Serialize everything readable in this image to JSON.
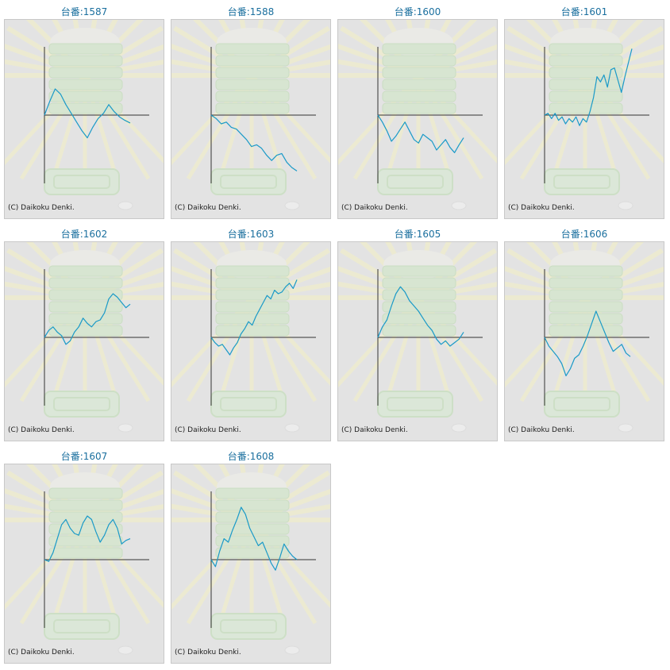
{
  "colors": {
    "line": "#1a9ac8",
    "axis": "#333333",
    "panel": "#e3e3e3",
    "title": "#1a6f9e"
  },
  "chart_data": [
    {
      "type": "line",
      "title": "台番:1587",
      "copyright": "(C) Daikoku Denki.",
      "y": [
        0,
        80,
        150,
        120,
        60,
        10,
        -40,
        -90,
        -130,
        -70,
        -20,
        10,
        60,
        20,
        -10,
        -30,
        -45
      ]
    },
    {
      "type": "line",
      "title": "台番:1588",
      "copyright": "(C) Daikoku Denki.",
      "y": [
        0,
        -20,
        -50,
        -40,
        -70,
        -80,
        -110,
        -140,
        -180,
        -170,
        -190,
        -230,
        -260,
        -230,
        -220,
        -270,
        -300,
        -320
      ]
    },
    {
      "type": "line",
      "title": "台番:1600",
      "copyright": "(C) Daikoku Denki.",
      "y": [
        0,
        -40,
        -90,
        -150,
        -120,
        -80,
        -40,
        -90,
        -140,
        -160,
        -110,
        -130,
        -150,
        -200,
        -170,
        -140,
        -185,
        -215,
        -170,
        -130
      ]
    },
    {
      "type": "line",
      "title": "台番:1601",
      "copyright": "(C) Daikoku Denki.",
      "y": [
        0,
        10,
        -20,
        10,
        -30,
        -10,
        -50,
        -20,
        -40,
        -10,
        -60,
        -20,
        -40,
        20,
        100,
        220,
        190,
        230,
        160,
        260,
        270,
        200,
        130,
        220,
        300,
        380
      ]
    },
    {
      "type": "line",
      "title": "台番:1602",
      "copyright": "(C) Daikoku Denki.",
      "y": [
        0,
        40,
        60,
        30,
        10,
        -40,
        -20,
        30,
        60,
        110,
        80,
        60,
        90,
        100,
        140,
        220,
        250,
        230,
        200,
        170,
        190
      ]
    },
    {
      "type": "line",
      "title": "台番:1603",
      "copyright": "(C) Daikoku Denki.",
      "y": [
        0,
        -30,
        -50,
        -40,
        -70,
        -100,
        -60,
        -30,
        20,
        50,
        90,
        70,
        120,
        160,
        200,
        240,
        220,
        270,
        250,
        260,
        290,
        310,
        280,
        330
      ]
    },
    {
      "type": "line",
      "title": "台番:1605",
      "copyright": "(C) Daikoku Denki.",
      "y": [
        0,
        60,
        100,
        180,
        250,
        290,
        260,
        210,
        180,
        150,
        110,
        70,
        40,
        -10,
        -40,
        -20,
        -50,
        -30,
        -10,
        30
      ]
    },
    {
      "type": "line",
      "title": "台番:1606",
      "copyright": "(C) Daikoku Denki.",
      "y": [
        0,
        -50,
        -80,
        -110,
        -150,
        -220,
        -180,
        -120,
        -100,
        -50,
        10,
        80,
        150,
        90,
        30,
        -30,
        -80,
        -60,
        -40,
        -90,
        -110
      ]
    },
    {
      "type": "line",
      "title": "台番:1607",
      "copyright": "(C) Daikoku Denki.",
      "y": [
        0,
        -10,
        40,
        120,
        200,
        230,
        180,
        150,
        140,
        210,
        250,
        230,
        160,
        100,
        140,
        200,
        230,
        180,
        90,
        110,
        120
      ]
    },
    {
      "type": "line",
      "title": "台番:1608",
      "copyright": "(C) Daikoku Denki.",
      "y": [
        0,
        -40,
        50,
        120,
        100,
        170,
        230,
        300,
        260,
        180,
        130,
        80,
        100,
        40,
        -20,
        -60,
        10,
        90,
        50,
        20,
        0
      ]
    }
  ]
}
